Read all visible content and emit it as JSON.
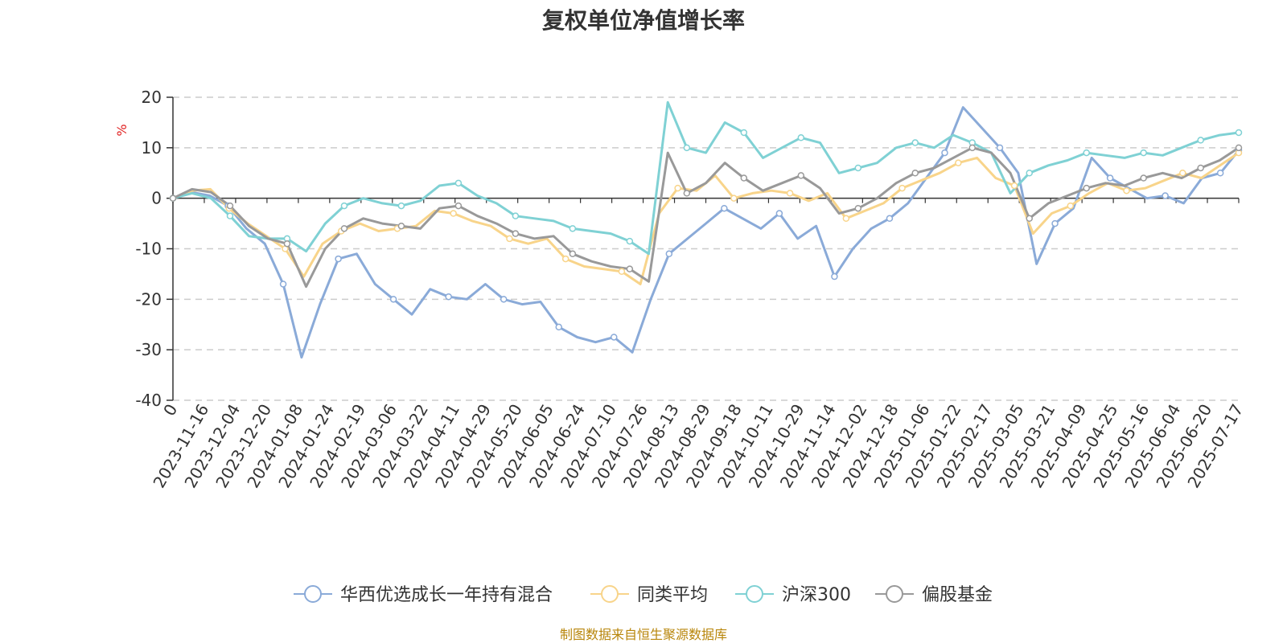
{
  "title": "复权单位净值增长率",
  "footer": "制图数据来自恒生聚源数据库",
  "chart_data": {
    "type": "line",
    "title": "复权单位净值增长率",
    "ylabel": "%",
    "ylim": [
      -40,
      20
    ],
    "yticks": [
      20,
      10,
      0,
      -10,
      -20,
      -30,
      -40
    ],
    "grid": "horizontal dashed",
    "legend_position": "bottom",
    "x_labels": [
      "0",
      "2023-11-16",
      "2023-12-04",
      "2023-12-20",
      "2024-01-08",
      "2024-01-24",
      "2024-02-19",
      "2024-03-06",
      "2024-03-22",
      "2024-04-11",
      "2024-04-29",
      "2024-05-20",
      "2024-06-05",
      "2024-06-24",
      "2024-07-10",
      "2024-07-26",
      "2024-08-13",
      "2024-08-29",
      "2024-09-18",
      "2024-10-11",
      "2024-10-29",
      "2024-11-14",
      "2024-12-02",
      "2024-12-18",
      "2025-01-06",
      "2025-01-22",
      "2025-02-17",
      "2025-03-05",
      "2025-03-21",
      "2025-04-09",
      "2025-04-25",
      "2025-05-16",
      "2025-06-04",
      "2025-06-20",
      "2025-07-17"
    ],
    "series": [
      {
        "name": "华西优选成长一年持有混合",
        "color": "#8aaad8",
        "values": [
          0,
          1.2,
          0.5,
          -1.5,
          -6.0,
          -9.0,
          -17.0,
          -31.5,
          -21.0,
          -12.0,
          -11.0,
          -17.0,
          -20.0,
          -23.0,
          -18.0,
          -19.5,
          -20.0,
          -17.0,
          -20.0,
          -21.0,
          -20.5,
          -25.5,
          -27.5,
          -28.5,
          -27.5,
          -30.5,
          -20.0,
          -11.0,
          -8.0,
          -5.0,
          -2.0,
          -4.0,
          -6.0,
          -3.0,
          -8.0,
          -5.5,
          -15.5,
          -10.0,
          -6.0,
          -4.0,
          -1.0,
          4.0,
          9.0,
          18.0,
          14.0,
          10.0,
          5.0,
          -13.0,
          -5.0,
          -2.0,
          8.0,
          4.0,
          2.0,
          0.0,
          0.5,
          -1.0,
          4.0,
          5.0,
          9.5
        ]
      },
      {
        "name": "同类平均",
        "color": "#f8d48a",
        "values": [
          0,
          1.5,
          1.8,
          -2.0,
          -5.0,
          -7.5,
          -10.0,
          -15.5,
          -9.0,
          -6.5,
          -5.0,
          -6.5,
          -6.0,
          -5.5,
          -2.5,
          -3.0,
          -4.5,
          -5.5,
          -8.0,
          -9.0,
          -8.0,
          -12.0,
          -13.5,
          -14.0,
          -14.5,
          -17.0,
          -3.0,
          2.0,
          1.5,
          4.5,
          0.0,
          1.0,
          1.5,
          1.0,
          -0.5,
          1.0,
          -4.0,
          -2.5,
          -1.0,
          2.0,
          3.5,
          5.0,
          7.0,
          8.0,
          4.0,
          2.5,
          -7.0,
          -3.0,
          -1.5,
          1.0,
          3.0,
          1.5,
          2.0,
          3.5,
          5.0,
          4.0,
          6.5,
          9.0
        ]
      },
      {
        "name": "沪深300",
        "color": "#7fd1d4",
        "values": [
          0,
          1.0,
          0.0,
          -3.5,
          -7.5,
          -8.0,
          -8.0,
          -10.5,
          -5.0,
          -1.5,
          0.0,
          -1.0,
          -1.5,
          -0.5,
          2.5,
          3.0,
          0.5,
          -1.0,
          -3.5,
          -4.0,
          -4.5,
          -6.0,
          -6.5,
          -7.0,
          -8.5,
          -11.0,
          19.0,
          10.0,
          9.0,
          15.0,
          13.0,
          8.0,
          10.0,
          12.0,
          11.0,
          5.0,
          6.0,
          7.0,
          10.0,
          11.0,
          10.0,
          12.5,
          11.0,
          9.0,
          1.0,
          5.0,
          6.5,
          7.5,
          9.0,
          8.5,
          8.0,
          9.0,
          8.5,
          10.0,
          11.5,
          12.5,
          13.0
        ]
      },
      {
        "name": "偏股基金",
        "color": "#999999",
        "values": [
          0,
          1.8,
          1.2,
          -1.5,
          -5.5,
          -8.0,
          -9.0,
          -17.5,
          -10.0,
          -6.0,
          -4.0,
          -5.0,
          -5.5,
          -6.0,
          -2.0,
          -1.5,
          -3.5,
          -5.0,
          -7.0,
          -8.0,
          -7.5,
          -11.0,
          -12.5,
          -13.5,
          -14.0,
          -16.5,
          9.0,
          1.0,
          3.0,
          7.0,
          4.0,
          1.5,
          3.0,
          4.5,
          2.0,
          -3.0,
          -2.0,
          0.0,
          3.0,
          5.0,
          6.0,
          8.0,
          10.0,
          9.0,
          5.0,
          -4.0,
          -1.0,
          0.5,
          2.0,
          3.0,
          2.5,
          4.0,
          5.0,
          4.0,
          6.0,
          7.5,
          10.0
        ]
      }
    ]
  }
}
